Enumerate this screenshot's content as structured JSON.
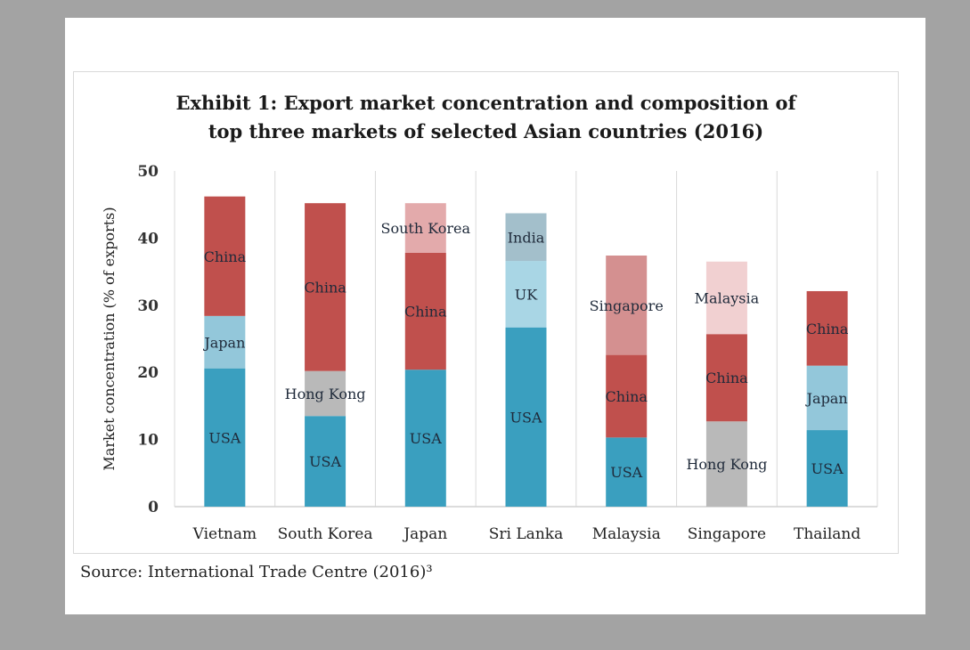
{
  "chart_data": {
    "type": "bar",
    "stacked": true,
    "title": [
      "Exhibit 1: Export market concentration and composition of",
      "top three markets of selected Asian countries (2016)"
    ],
    "xlabel": "",
    "ylabel": "Market concentration (% of exports)",
    "ylim": [
      0,
      50
    ],
    "yticks": [
      0,
      10,
      20,
      30,
      40,
      50
    ],
    "grid": false,
    "categories": [
      "Vietnam",
      "South Korea",
      "Japan",
      "Sri Lanka",
      "Malaysia",
      "Singapore",
      "Thailand"
    ],
    "stacks": [
      [
        {
          "market": "USA",
          "value": 20.6
        },
        {
          "market": "Japan",
          "value": 7.8
        },
        {
          "market": "China",
          "value": 17.8
        }
      ],
      [
        {
          "market": "USA",
          "value": 13.5
        },
        {
          "market": "Hong Kong",
          "value": 6.7
        },
        {
          "market": "China",
          "value": 25.0
        }
      ],
      [
        {
          "market": "USA",
          "value": 20.4
        },
        {
          "market": "China",
          "value": 17.4
        },
        {
          "market": "South Korea",
          "value": 7.4
        }
      ],
      [
        {
          "market": "USA",
          "value": 26.7
        },
        {
          "market": "UK",
          "value": 9.9
        },
        {
          "market": "India",
          "value": 7.1
        }
      ],
      [
        {
          "market": "USA",
          "value": 10.3
        },
        {
          "market": "China",
          "value": 12.3
        },
        {
          "market": "Singapore",
          "value": 14.8
        }
      ],
      [
        {
          "market": "Hong Kong",
          "value": 12.7
        },
        {
          "market": "China",
          "value": 13.0
        },
        {
          "market": "Malaysia",
          "value": 10.8
        }
      ],
      [
        {
          "market": "USA",
          "value": 11.4
        },
        {
          "market": "Japan",
          "value": 9.6
        },
        {
          "market": "China",
          "value": 11.1
        }
      ]
    ],
    "colors": {
      "USA": "#3a9fbf",
      "China": "#c0504d",
      "Japan": "#93c7da",
      "Hong Kong": "#b9b9b9",
      "South Korea": "#e3aaab",
      "UK": "#a9d6e5",
      "India": "#a3bfcb",
      "Singapore": "#d49090",
      "Malaysia": "#f1d0d1"
    }
  },
  "source": "Source: International Trade Centre (2016)³"
}
